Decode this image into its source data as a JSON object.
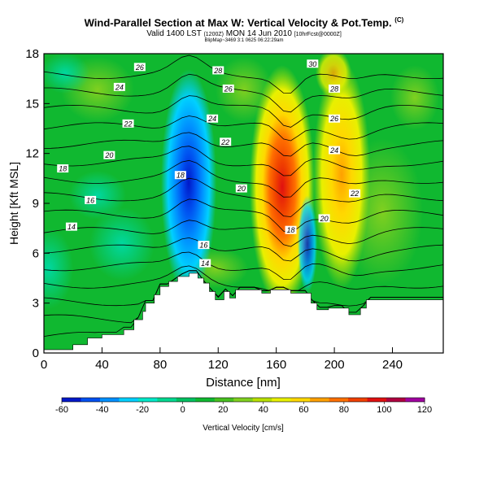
{
  "title": {
    "main": "Wind-Parallel Section at Max W: Vertical Velocity & Pot.Temp.",
    "suffix": "(C)"
  },
  "subtitle": {
    "pre": "Valid 1400 LST",
    "small1": "(1200Z)",
    "mid": "MON 14 Jun 2010",
    "small2": "[10hrFcst@0000Z]"
  },
  "stamp": "BlipMap~3469 3:1 0625 06:22:29am",
  "chart_data": {
    "type": "heatmap",
    "xlabel": "Distance [nm]",
    "ylabel": "Height [Kft MSL]",
    "xlim": [
      0,
      275
    ],
    "ylim": [
      0,
      18
    ],
    "xticks": [
      0,
      40,
      80,
      120,
      160,
      200,
      240
    ],
    "yticks": [
      0,
      3,
      6,
      9,
      12,
      15,
      18
    ],
    "colorbar": {
      "label": "Vertical Velocity [cm/s]",
      "ticks": [
        -60,
        -40,
        -20,
        0,
        20,
        40,
        60,
        80,
        100,
        120
      ],
      "colors": [
        "#0018c8",
        "#0050f0",
        "#0090ff",
        "#00d0ff",
        "#00e8c8",
        "#00d890",
        "#00c060",
        "#10b830",
        "#48c020",
        "#80d020",
        "#b8e000",
        "#e8f000",
        "#ffd800",
        "#ffa000",
        "#ff7000",
        "#f04000",
        "#e01010",
        "#b00040",
        "#a000a0"
      ]
    },
    "features": [
      {
        "kind": "downdraft",
        "x": 100,
        "y": 10.5,
        "min": -55
      },
      {
        "kind": "updraft",
        "x": 168,
        "y": 10.5,
        "max": 100
      },
      {
        "kind": "updraft",
        "x": 212,
        "y": 11.0,
        "max": 50
      }
    ],
    "theta_contour_labels": [
      {
        "value": "26",
        "x": 66,
        "y": 17.2
      },
      {
        "value": "24",
        "x": 52,
        "y": 16.0
      },
      {
        "value": "22",
        "x": 58,
        "y": 13.8
      },
      {
        "value": "20",
        "x": 45,
        "y": 11.9
      },
      {
        "value": "18",
        "x": 13,
        "y": 11.1
      },
      {
        "value": "16",
        "x": 32,
        "y": 9.2
      },
      {
        "value": "14",
        "x": 19,
        "y": 7.6
      },
      {
        "value": "28",
        "x": 120,
        "y": 17.0
      },
      {
        "value": "26",
        "x": 127,
        "y": 15.9
      },
      {
        "value": "24",
        "x": 116,
        "y": 14.1
      },
      {
        "value": "22",
        "x": 125,
        "y": 12.7
      },
      {
        "value": "20",
        "x": 136,
        "y": 9.9
      },
      {
        "value": "18",
        "x": 94,
        "y": 10.7
      },
      {
        "value": "16",
        "x": 110,
        "y": 6.5
      },
      {
        "value": "14",
        "x": 111,
        "y": 5.4
      },
      {
        "value": "30",
        "x": 185,
        "y": 17.4
      },
      {
        "value": "28",
        "x": 200,
        "y": 15.9
      },
      {
        "value": "26",
        "x": 200,
        "y": 14.1
      },
      {
        "value": "24",
        "x": 200,
        "y": 12.2
      },
      {
        "value": "22",
        "x": 214,
        "y": 9.6
      },
      {
        "value": "20",
        "x": 193,
        "y": 8.1
      },
      {
        "value": "18",
        "x": 170,
        "y": 7.4
      }
    ],
    "terrain": [
      [
        0,
        0.2
      ],
      [
        20,
        0.2
      ],
      [
        20,
        0.5
      ],
      [
        30,
        0.5
      ],
      [
        30,
        0.9
      ],
      [
        40,
        0.9
      ],
      [
        40,
        1.1
      ],
      [
        55,
        1.1
      ],
      [
        55,
        1.4
      ],
      [
        62,
        1.4
      ],
      [
        62,
        2.0
      ],
      [
        68,
        2.0
      ],
      [
        68,
        2.5
      ],
      [
        70,
        2.5
      ],
      [
        70,
        3.0
      ],
      [
        76,
        3.0
      ],
      [
        76,
        3.5
      ],
      [
        80,
        3.5
      ],
      [
        80,
        4.0
      ],
      [
        86,
        4.0
      ],
      [
        86,
        4.3
      ],
      [
        92,
        4.3
      ],
      [
        92,
        4.6
      ],
      [
        100,
        4.6
      ],
      [
        100,
        4.8
      ],
      [
        106,
        4.8
      ],
      [
        106,
        4.5
      ],
      [
        110,
        4.5
      ],
      [
        110,
        4.2
      ],
      [
        114,
        4.2
      ],
      [
        114,
        3.7
      ],
      [
        118,
        3.7
      ],
      [
        118,
        3.2
      ],
      [
        124,
        3.2
      ],
      [
        124,
        3.7
      ],
      [
        128,
        3.7
      ],
      [
        128,
        3.3
      ],
      [
        132,
        3.3
      ],
      [
        132,
        3.8
      ],
      [
        150,
        3.8
      ],
      [
        150,
        3.6
      ],
      [
        156,
        3.6
      ],
      [
        156,
        3.8
      ],
      [
        170,
        3.8
      ],
      [
        170,
        3.6
      ],
      [
        184,
        3.6
      ],
      [
        184,
        3.0
      ],
      [
        188,
        3.0
      ],
      [
        188,
        2.6
      ],
      [
        196,
        2.6
      ],
      [
        196,
        2.7
      ],
      [
        210,
        2.7
      ],
      [
        210,
        2.3
      ],
      [
        218,
        2.3
      ],
      [
        218,
        2.7
      ],
      [
        222,
        2.7
      ],
      [
        222,
        3.2
      ],
      [
        275,
        3.2
      ]
    ]
  }
}
